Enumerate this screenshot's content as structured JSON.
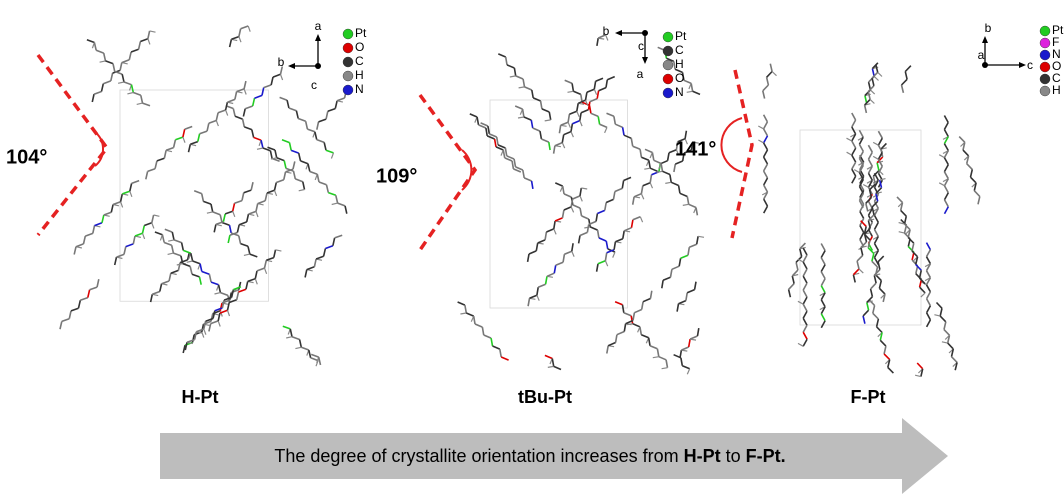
{
  "panels": [
    {
      "name": "H-Pt",
      "angle": "104°",
      "axes": [
        "a",
        "b",
        "c"
      ],
      "legend": [
        {
          "label": "Pt",
          "color": "#22cc22"
        },
        {
          "label": "O",
          "color": "#dd0000"
        },
        {
          "label": "C",
          "color": "#333333"
        },
        {
          "label": "H",
          "color": "#888888"
        },
        {
          "label": "N",
          "color": "#1a1acc"
        }
      ]
    },
    {
      "name": "tBu-Pt",
      "angle": "109°",
      "axes": [
        "b",
        "c",
        "a"
      ],
      "legend": [
        {
          "label": "Pt",
          "color": "#22cc22"
        },
        {
          "label": "C",
          "color": "#333333"
        },
        {
          "label": "H",
          "color": "#888888"
        },
        {
          "label": "O",
          "color": "#dd0000"
        },
        {
          "label": "N",
          "color": "#1a1acc"
        }
      ]
    },
    {
      "name": "F-Pt",
      "angle": "141°",
      "axes": [
        "b",
        "a",
        "c"
      ],
      "legend": [
        {
          "label": "Pt",
          "color": "#22cc22"
        },
        {
          "label": "F",
          "color": "#dd22dd"
        },
        {
          "label": "N",
          "color": "#1a1acc"
        },
        {
          "label": "O",
          "color": "#dd0000"
        },
        {
          "label": "C",
          "color": "#333333"
        },
        {
          "label": "H",
          "color": "#888888"
        }
      ]
    }
  ],
  "caption": {
    "parts": [
      "The degree of crystallite orientation increases from ",
      "H-Pt",
      " to ",
      "F-Pt."
    ]
  }
}
